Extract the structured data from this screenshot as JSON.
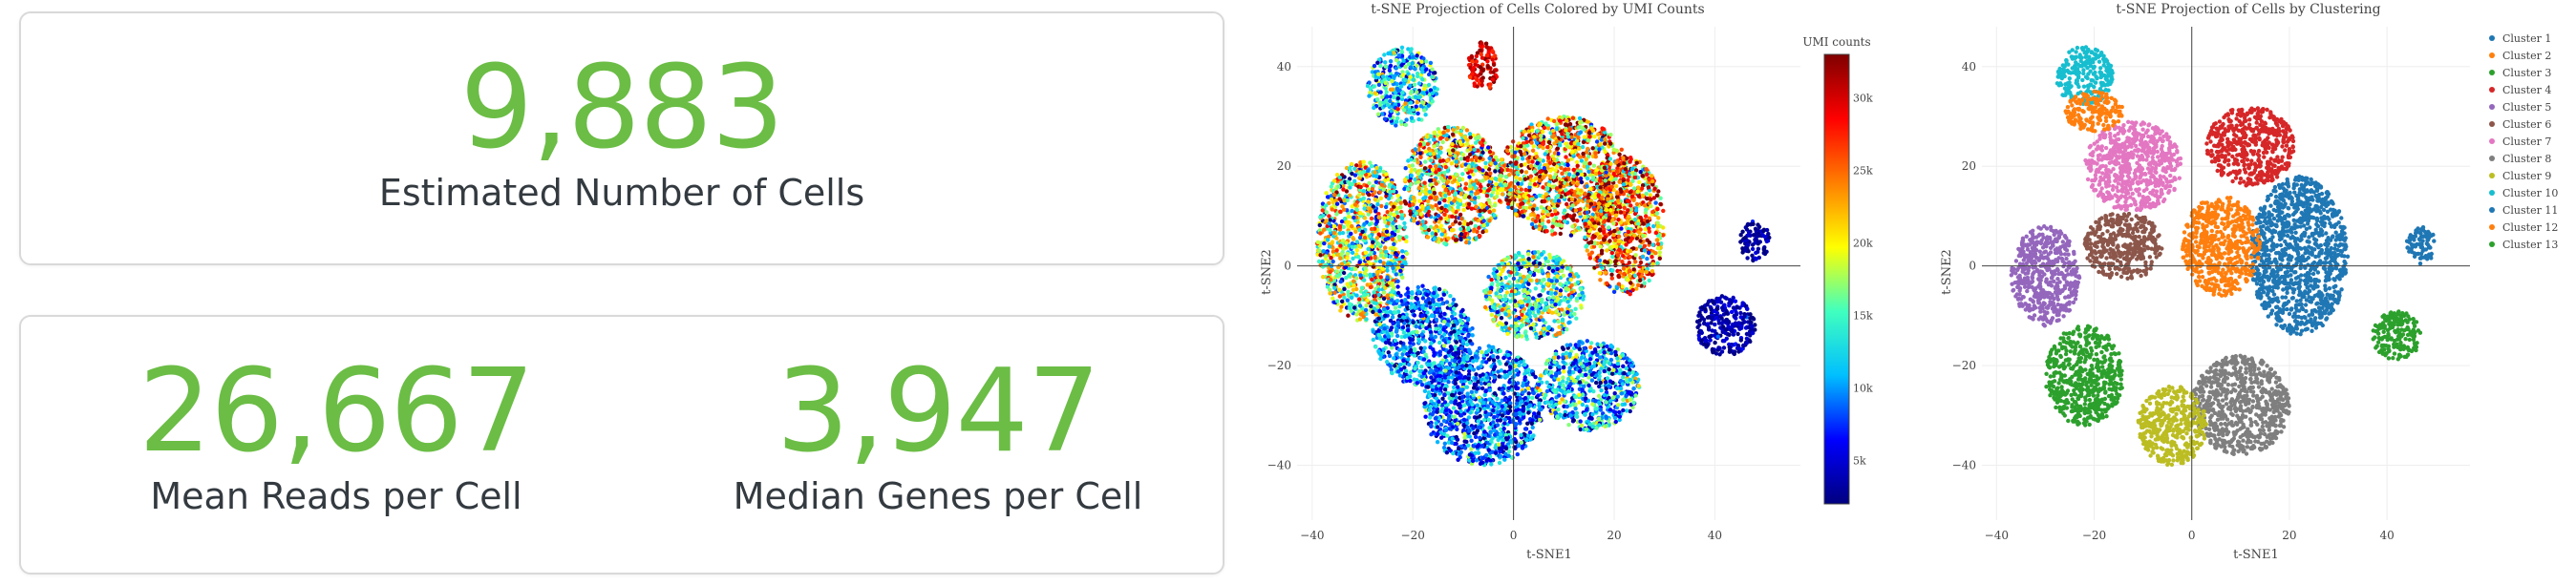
{
  "summary": {
    "estimated_cells": {
      "value": "9,883",
      "label": "Estimated Number of Cells"
    },
    "mean_reads": {
      "value": "26,667",
      "label": "Mean Reads per Cell"
    },
    "median_genes": {
      "value": "3,947",
      "label": "Median Genes per Cell"
    }
  },
  "chart_data": [
    {
      "type": "scatter",
      "title": "t-SNE Projection of Cells Colored by UMI Counts",
      "xlabel": "t-SNE1",
      "ylabel": "t-SNE2",
      "xlim": [
        -43,
        57
      ],
      "ylim": [
        -51,
        48
      ],
      "x_ticks": [
        -40,
        -20,
        0,
        20,
        40
      ],
      "y_ticks": [
        40,
        20,
        0,
        -20,
        -40
      ],
      "grid": true,
      "colorbar": {
        "title": "UMI counts",
        "range": [
          2000,
          33000
        ],
        "ticks": [
          {
            "value": 30000,
            "label": "30k"
          },
          {
            "value": 25000,
            "label": "25k"
          },
          {
            "value": 20000,
            "label": "20k"
          },
          {
            "value": 15000,
            "label": "15k"
          },
          {
            "value": 10000,
            "label": "10k"
          },
          {
            "value": 5000,
            "label": "5k"
          }
        ],
        "colorscale": [
          "#00007f",
          "#0000ff",
          "#00bfff",
          "#40ffbf",
          "#ffff00",
          "#ff7f00",
          "#ff0000",
          "#7f0000"
        ]
      },
      "regions": [
        {
          "cx": -22,
          "cy": 36,
          "rx": 7,
          "ry": 8,
          "umi": 12000,
          "spread": 5000
        },
        {
          "cx": -6,
          "cy": 40,
          "rx": 3,
          "ry": 5,
          "umi": 30000,
          "spread": 2000
        },
        {
          "cx": -30,
          "cy": 5,
          "rx": 9,
          "ry": 16,
          "umi": 17000,
          "spread": 7000
        },
        {
          "cx": -12,
          "cy": 16,
          "rx": 10,
          "ry": 12,
          "umi": 20000,
          "spread": 8000
        },
        {
          "cx": 10,
          "cy": 18,
          "rx": 13,
          "ry": 12,
          "umi": 22000,
          "spread": 8000
        },
        {
          "cx": 22,
          "cy": 8,
          "rx": 8,
          "ry": 14,
          "umi": 24000,
          "spread": 7000
        },
        {
          "cx": -18,
          "cy": -14,
          "rx": 10,
          "ry": 10,
          "umi": 9000,
          "spread": 4000
        },
        {
          "cx": -6,
          "cy": -28,
          "rx": 12,
          "ry": 12,
          "umi": 8500,
          "spread": 4000
        },
        {
          "cx": 15,
          "cy": -24,
          "rx": 10,
          "ry": 9,
          "umi": 11000,
          "spread": 5000
        },
        {
          "cx": 4,
          "cy": -6,
          "rx": 10,
          "ry": 9,
          "umi": 15000,
          "spread": 6000
        },
        {
          "cx": 48,
          "cy": 5,
          "rx": 3,
          "ry": 4,
          "umi": 3000,
          "spread": 1500
        },
        {
          "cx": 42,
          "cy": -12,
          "rx": 6,
          "ry": 6,
          "umi": 3500,
          "spread": 1500
        }
      ]
    },
    {
      "type": "scatter",
      "title": "t-SNE Projection of Cells by Clustering",
      "xlabel": "t-SNE1",
      "ylabel": "t-SNE2",
      "xlim": [
        -43,
        57
      ],
      "ylim": [
        -51,
        48
      ],
      "x_ticks": [
        -40,
        -20,
        0,
        20,
        40
      ],
      "y_ticks": [
        40,
        20,
        0,
        -20,
        -40
      ],
      "grid": true,
      "legend": "top-right",
      "series": [
        {
          "name": "Cluster 1",
          "color": "#1f77b4",
          "cx": 22,
          "cy": 2,
          "rx": 10,
          "ry": 16
        },
        {
          "name": "Cluster 2",
          "color": "#ff7f0e",
          "cx": 6,
          "cy": 4,
          "rx": 8,
          "ry": 10
        },
        {
          "name": "Cluster 3",
          "color": "#2ca02c",
          "cx": -22,
          "cy": -22,
          "rx": 8,
          "ry": 10
        },
        {
          "name": "Cluster 4",
          "color": "#d62728",
          "cx": 12,
          "cy": 24,
          "rx": 9,
          "ry": 8
        },
        {
          "name": "Cluster 5",
          "color": "#9467bd",
          "cx": -30,
          "cy": -2,
          "rx": 7,
          "ry": 10
        },
        {
          "name": "Cluster 6",
          "color": "#8c564b",
          "cx": -14,
          "cy": 4,
          "rx": 8,
          "ry": 7
        },
        {
          "name": "Cluster 7",
          "color": "#e377c2",
          "cx": -12,
          "cy": 20,
          "rx": 10,
          "ry": 9
        },
        {
          "name": "Cluster 8",
          "color": "#7f7f7f",
          "cx": 10,
          "cy": -28,
          "rx": 10,
          "ry": 10
        },
        {
          "name": "Cluster 9",
          "color": "#bcbd22",
          "cx": -4,
          "cy": -32,
          "rx": 7,
          "ry": 8
        },
        {
          "name": "Cluster 10",
          "color": "#17becf",
          "cx": -22,
          "cy": 38,
          "rx": 6,
          "ry": 6
        },
        {
          "name": "Cluster 11",
          "color": "#1f77b4",
          "cx": 47,
          "cy": 4,
          "rx": 3,
          "ry": 4
        },
        {
          "name": "Cluster 12",
          "color": "#ff7f0e",
          "cx": -20,
          "cy": 31,
          "rx": 6,
          "ry": 4
        },
        {
          "name": "Cluster 13",
          "color": "#2ca02c",
          "cx": 42,
          "cy": -14,
          "rx": 5,
          "ry": 5
        }
      ]
    }
  ]
}
